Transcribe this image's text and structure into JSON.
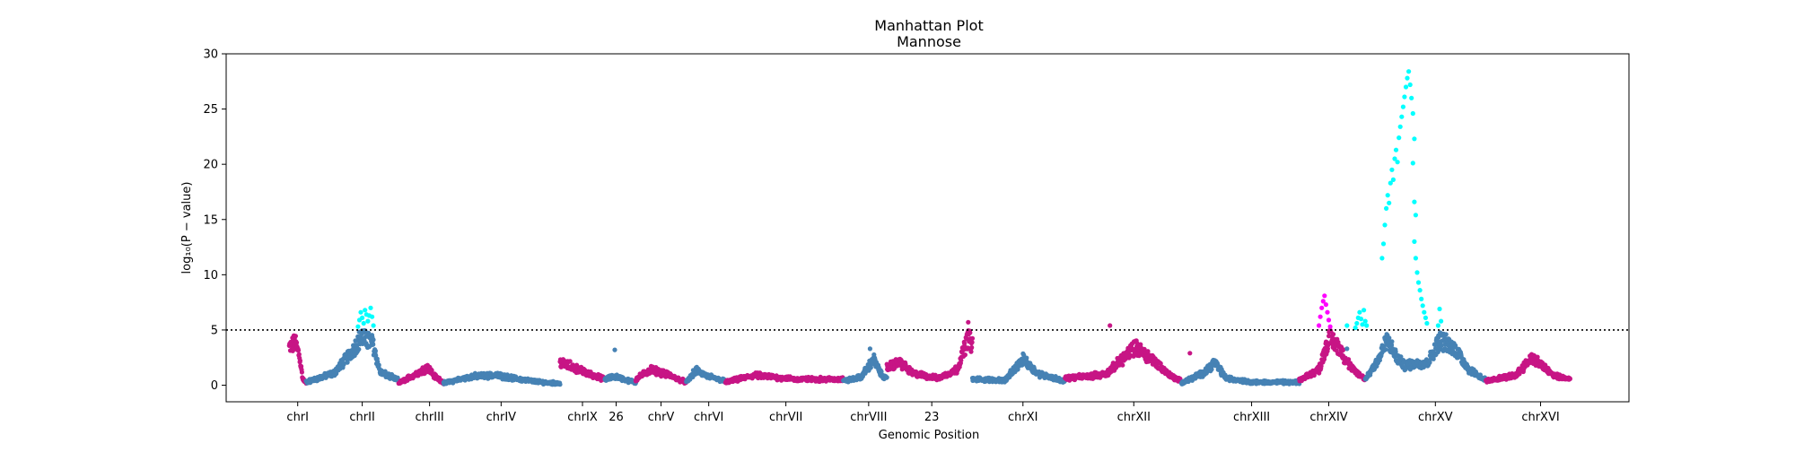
{
  "chart_data": {
    "type": "scatter",
    "title": "Manhattan Plot",
    "subtitle": "Mannose",
    "xlabel": "Genomic Position",
    "ylabel": "log₁₀(P − value)",
    "ylim": [
      -1.5,
      30
    ],
    "yticks": [
      0,
      5,
      10,
      15,
      20,
      25,
      30
    ],
    "threshold": 5,
    "grid": false,
    "legend": "none",
    "colors": {
      "pink": "#c71585",
      "steelblue": "#4682b4",
      "cyan": "#00ffff",
      "magenta": "#ff00ff",
      "threshold_line": "#000000"
    },
    "x_ticks": [
      {
        "label": "chrI",
        "pos": 0.051
      },
      {
        "label": "chrII",
        "pos": 0.097
      },
      {
        "label": "chrIII",
        "pos": 0.145
      },
      {
        "label": "chrIV",
        "pos": 0.196
      },
      {
        "label": "chrIX",
        "pos": 0.254
      },
      {
        "label": "26",
        "pos": 0.278
      },
      {
        "label": "chrV",
        "pos": 0.31
      },
      {
        "label": "chrVI",
        "pos": 0.344
      },
      {
        "label": "chrVII",
        "pos": 0.399
      },
      {
        "label": "chrVIII",
        "pos": 0.458
      },
      {
        "label": "23",
        "pos": 0.503
      },
      {
        "label": "chrXI",
        "pos": 0.568
      },
      {
        "label": "chrXII",
        "pos": 0.647
      },
      {
        "label": "chrXIII",
        "pos": 0.731
      },
      {
        "label": "chrXIV",
        "pos": 0.786
      },
      {
        "label": "chrXV",
        "pos": 0.862
      },
      {
        "label": "chrXVI",
        "pos": 0.937
      }
    ],
    "segments": [
      {
        "start": 0.045,
        "end": 0.057,
        "color": "pink",
        "profile": [
          [
            0,
            3.8
          ],
          [
            0.35,
            4.3
          ],
          [
            0.6,
            3.0
          ],
          [
            0.8,
            0.6
          ],
          [
            1,
            0.2
          ]
        ]
      },
      {
        "start": 0.057,
        "end": 0.123,
        "color": "steelblue",
        "profile": [
          [
            0,
            0.3
          ],
          [
            0.3,
            1.2
          ],
          [
            0.48,
            3.2
          ],
          [
            0.6,
            4.9
          ],
          [
            0.72,
            4.2
          ],
          [
            0.8,
            1.3
          ],
          [
            1,
            0.5
          ]
        ]
      },
      {
        "start": 0.123,
        "end": 0.155,
        "color": "pink",
        "profile": [
          [
            0,
            0.2
          ],
          [
            0.45,
            1.3
          ],
          [
            0.65,
            1.8
          ],
          [
            0.8,
            0.9
          ],
          [
            1,
            0.3
          ]
        ]
      },
      {
        "start": 0.155,
        "end": 0.238,
        "color": "steelblue",
        "profile": [
          [
            0,
            0.2
          ],
          [
            0.25,
            0.9
          ],
          [
            0.45,
            1.0
          ],
          [
            0.65,
            0.6
          ],
          [
            0.85,
            0.3
          ],
          [
            1,
            0.2
          ]
        ]
      },
      {
        "start": 0.238,
        "end": 0.27,
        "color": "pink",
        "profile": [
          [
            0,
            2.3
          ],
          [
            0.3,
            1.8
          ],
          [
            0.6,
            1.2
          ],
          [
            1,
            0.6
          ]
        ]
      },
      {
        "start": 0.27,
        "end": 0.292,
        "color": "steelblue",
        "profile": [
          [
            0,
            0.6
          ],
          [
            0.35,
            0.9
          ],
          [
            0.7,
            0.5
          ],
          [
            1,
            0.3
          ]
        ]
      },
      {
        "start": 0.292,
        "end": 0.328,
        "color": "pink",
        "profile": [
          [
            0,
            0.6
          ],
          [
            0.3,
            1.6
          ],
          [
            0.55,
            1.2
          ],
          [
            1,
            0.3
          ]
        ]
      },
      {
        "start": 0.328,
        "end": 0.356,
        "color": "steelblue",
        "profile": [
          [
            0,
            0.3
          ],
          [
            0.25,
            1.5
          ],
          [
            0.55,
            0.9
          ],
          [
            1,
            0.4
          ]
        ]
      },
      {
        "start": 0.356,
        "end": 0.44,
        "color": "pink",
        "profile": [
          [
            0,
            0.3
          ],
          [
            0.25,
            1.0
          ],
          [
            0.6,
            0.6
          ],
          [
            1,
            0.6
          ]
        ]
      },
      {
        "start": 0.44,
        "end": 0.471,
        "color": "steelblue",
        "profile": [
          [
            0,
            0.4
          ],
          [
            0.4,
            0.8
          ],
          [
            0.7,
            2.6
          ],
          [
            0.85,
            1.2
          ],
          [
            1,
            0.6
          ]
        ]
      },
      {
        "start": 0.471,
        "end": 0.532,
        "color": "pink",
        "profile": [
          [
            0,
            1.8
          ],
          [
            0.15,
            2.3
          ],
          [
            0.3,
            1.2
          ],
          [
            0.6,
            0.7
          ],
          [
            0.82,
            1.6
          ],
          [
            0.95,
            4.8
          ],
          [
            1,
            4.0
          ]
        ]
      },
      {
        "start": 0.532,
        "end": 0.598,
        "color": "steelblue",
        "profile": [
          [
            0,
            0.6
          ],
          [
            0.35,
            0.5
          ],
          [
            0.55,
            2.6
          ],
          [
            0.7,
            1.2
          ],
          [
            1,
            0.4
          ]
        ]
      },
      {
        "start": 0.598,
        "end": 0.681,
        "color": "pink",
        "profile": [
          [
            0,
            0.7
          ],
          [
            0.35,
            1.1
          ],
          [
            0.6,
            3.8
          ],
          [
            0.75,
            2.6
          ],
          [
            0.9,
            1.0
          ],
          [
            1,
            0.4
          ]
        ]
      },
      {
        "start": 0.681,
        "end": 0.765,
        "color": "steelblue",
        "profile": [
          [
            0,
            0.2
          ],
          [
            0.18,
            1.2
          ],
          [
            0.28,
            2.3
          ],
          [
            0.38,
            0.7
          ],
          [
            0.6,
            0.3
          ],
          [
            1,
            0.3
          ]
        ]
      },
      {
        "start": 0.765,
        "end": 0.812,
        "color": "pink",
        "profile": [
          [
            0,
            0.5
          ],
          [
            0.3,
            1.6
          ],
          [
            0.45,
            4.8
          ],
          [
            0.6,
            3.8
          ],
          [
            0.8,
            1.6
          ],
          [
            1,
            0.6
          ]
        ]
      },
      {
        "start": 0.812,
        "end": 0.898,
        "color": "steelblue",
        "profile": [
          [
            0,
            0.6
          ],
          [
            0.12,
            2.8
          ],
          [
            0.18,
            4.6
          ],
          [
            0.25,
            3.0
          ],
          [
            0.32,
            2.0
          ],
          [
            0.52,
            2.3
          ],
          [
            0.62,
            4.6
          ],
          [
            0.75,
            3.6
          ],
          [
            0.86,
            1.6
          ],
          [
            1,
            0.5
          ]
        ]
      },
      {
        "start": 0.898,
        "end": 0.958,
        "color": "pink",
        "profile": [
          [
            0,
            0.4
          ],
          [
            0.35,
            1.0
          ],
          [
            0.55,
            2.8
          ],
          [
            0.8,
            1.0
          ],
          [
            1,
            0.6
          ]
        ]
      }
    ],
    "peaks": [
      {
        "color": "cyan",
        "points": [
          [
            0.094,
            5.3
          ],
          [
            0.095,
            5.9
          ],
          [
            0.096,
            6.6
          ],
          [
            0.097,
            6.1
          ],
          [
            0.098,
            5.6
          ],
          [
            0.099,
            6.8
          ],
          [
            0.1,
            6.4
          ],
          [
            0.101,
            5.8
          ],
          [
            0.102,
            6.3
          ],
          [
            0.103,
            7.0
          ],
          [
            0.104,
            6.2
          ],
          [
            0.105,
            5.4
          ]
        ]
      },
      {
        "color": "pink",
        "points": [
          [
            0.529,
            5.7
          ],
          [
            0.63,
            5.4
          ]
        ]
      },
      {
        "color": "magenta",
        "points": [
          [
            0.779,
            5.4
          ],
          [
            0.78,
            6.2
          ],
          [
            0.781,
            7.0
          ],
          [
            0.782,
            7.6
          ],
          [
            0.783,
            8.1
          ],
          [
            0.784,
            7.3
          ],
          [
            0.785,
            6.6
          ],
          [
            0.786,
            5.9
          ],
          [
            0.787,
            5.3
          ]
        ]
      },
      {
        "color": "cyan",
        "points": [
          [
            0.805,
            5.2
          ],
          [
            0.806,
            5.6
          ],
          [
            0.807,
            6.1
          ],
          [
            0.808,
            6.6
          ],
          [
            0.809,
            6.0
          ],
          [
            0.81,
            5.5
          ],
          [
            0.811,
            6.8
          ],
          [
            0.812,
            5.8
          ],
          [
            0.813,
            5.4
          ],
          [
            0.799,
            5.4
          ]
        ]
      },
      {
        "color": "cyan",
        "points": [
          [
            0.824,
            11.5
          ],
          [
            0.825,
            12.8
          ],
          [
            0.826,
            14.5
          ],
          [
            0.827,
            16.0
          ],
          [
            0.828,
            17.2
          ],
          [
            0.829,
            16.5
          ],
          [
            0.83,
            18.3
          ],
          [
            0.831,
            19.5
          ],
          [
            0.832,
            18.6
          ],
          [
            0.833,
            20.5
          ],
          [
            0.834,
            21.3
          ],
          [
            0.835,
            20.2
          ],
          [
            0.836,
            22.4
          ],
          [
            0.837,
            23.4
          ],
          [
            0.838,
            24.3
          ],
          [
            0.839,
            25.2
          ],
          [
            0.84,
            26.1
          ],
          [
            0.841,
            27.0
          ],
          [
            0.842,
            27.8
          ],
          [
            0.843,
            28.4
          ],
          [
            0.844,
            27.2
          ],
          [
            0.845,
            26.0
          ],
          [
            0.846,
            24.6
          ],
          [
            0.847,
            22.3
          ],
          [
            0.846,
            20.1
          ],
          [
            0.847,
            16.6
          ],
          [
            0.848,
            15.4
          ],
          [
            0.847,
            13.0
          ],
          [
            0.848,
            11.5
          ],
          [
            0.849,
            10.2
          ],
          [
            0.85,
            9.3
          ],
          [
            0.851,
            8.6
          ],
          [
            0.852,
            7.8
          ],
          [
            0.853,
            7.2
          ],
          [
            0.854,
            6.6
          ],
          [
            0.855,
            6.1
          ],
          [
            0.856,
            5.6
          ]
        ]
      },
      {
        "color": "cyan",
        "points": [
          [
            0.864,
            5.4
          ],
          [
            0.865,
            6.9
          ],
          [
            0.866,
            5.8
          ]
        ]
      }
    ],
    "outliers": [
      {
        "color": "steelblue",
        "x": 0.277,
        "y": 3.2
      },
      {
        "color": "steelblue",
        "x": 0.459,
        "y": 3.3
      },
      {
        "color": "pink",
        "x": 0.687,
        "y": 2.9
      },
      {
        "color": "steelblue",
        "x": 0.799,
        "y": 3.3
      }
    ]
  }
}
